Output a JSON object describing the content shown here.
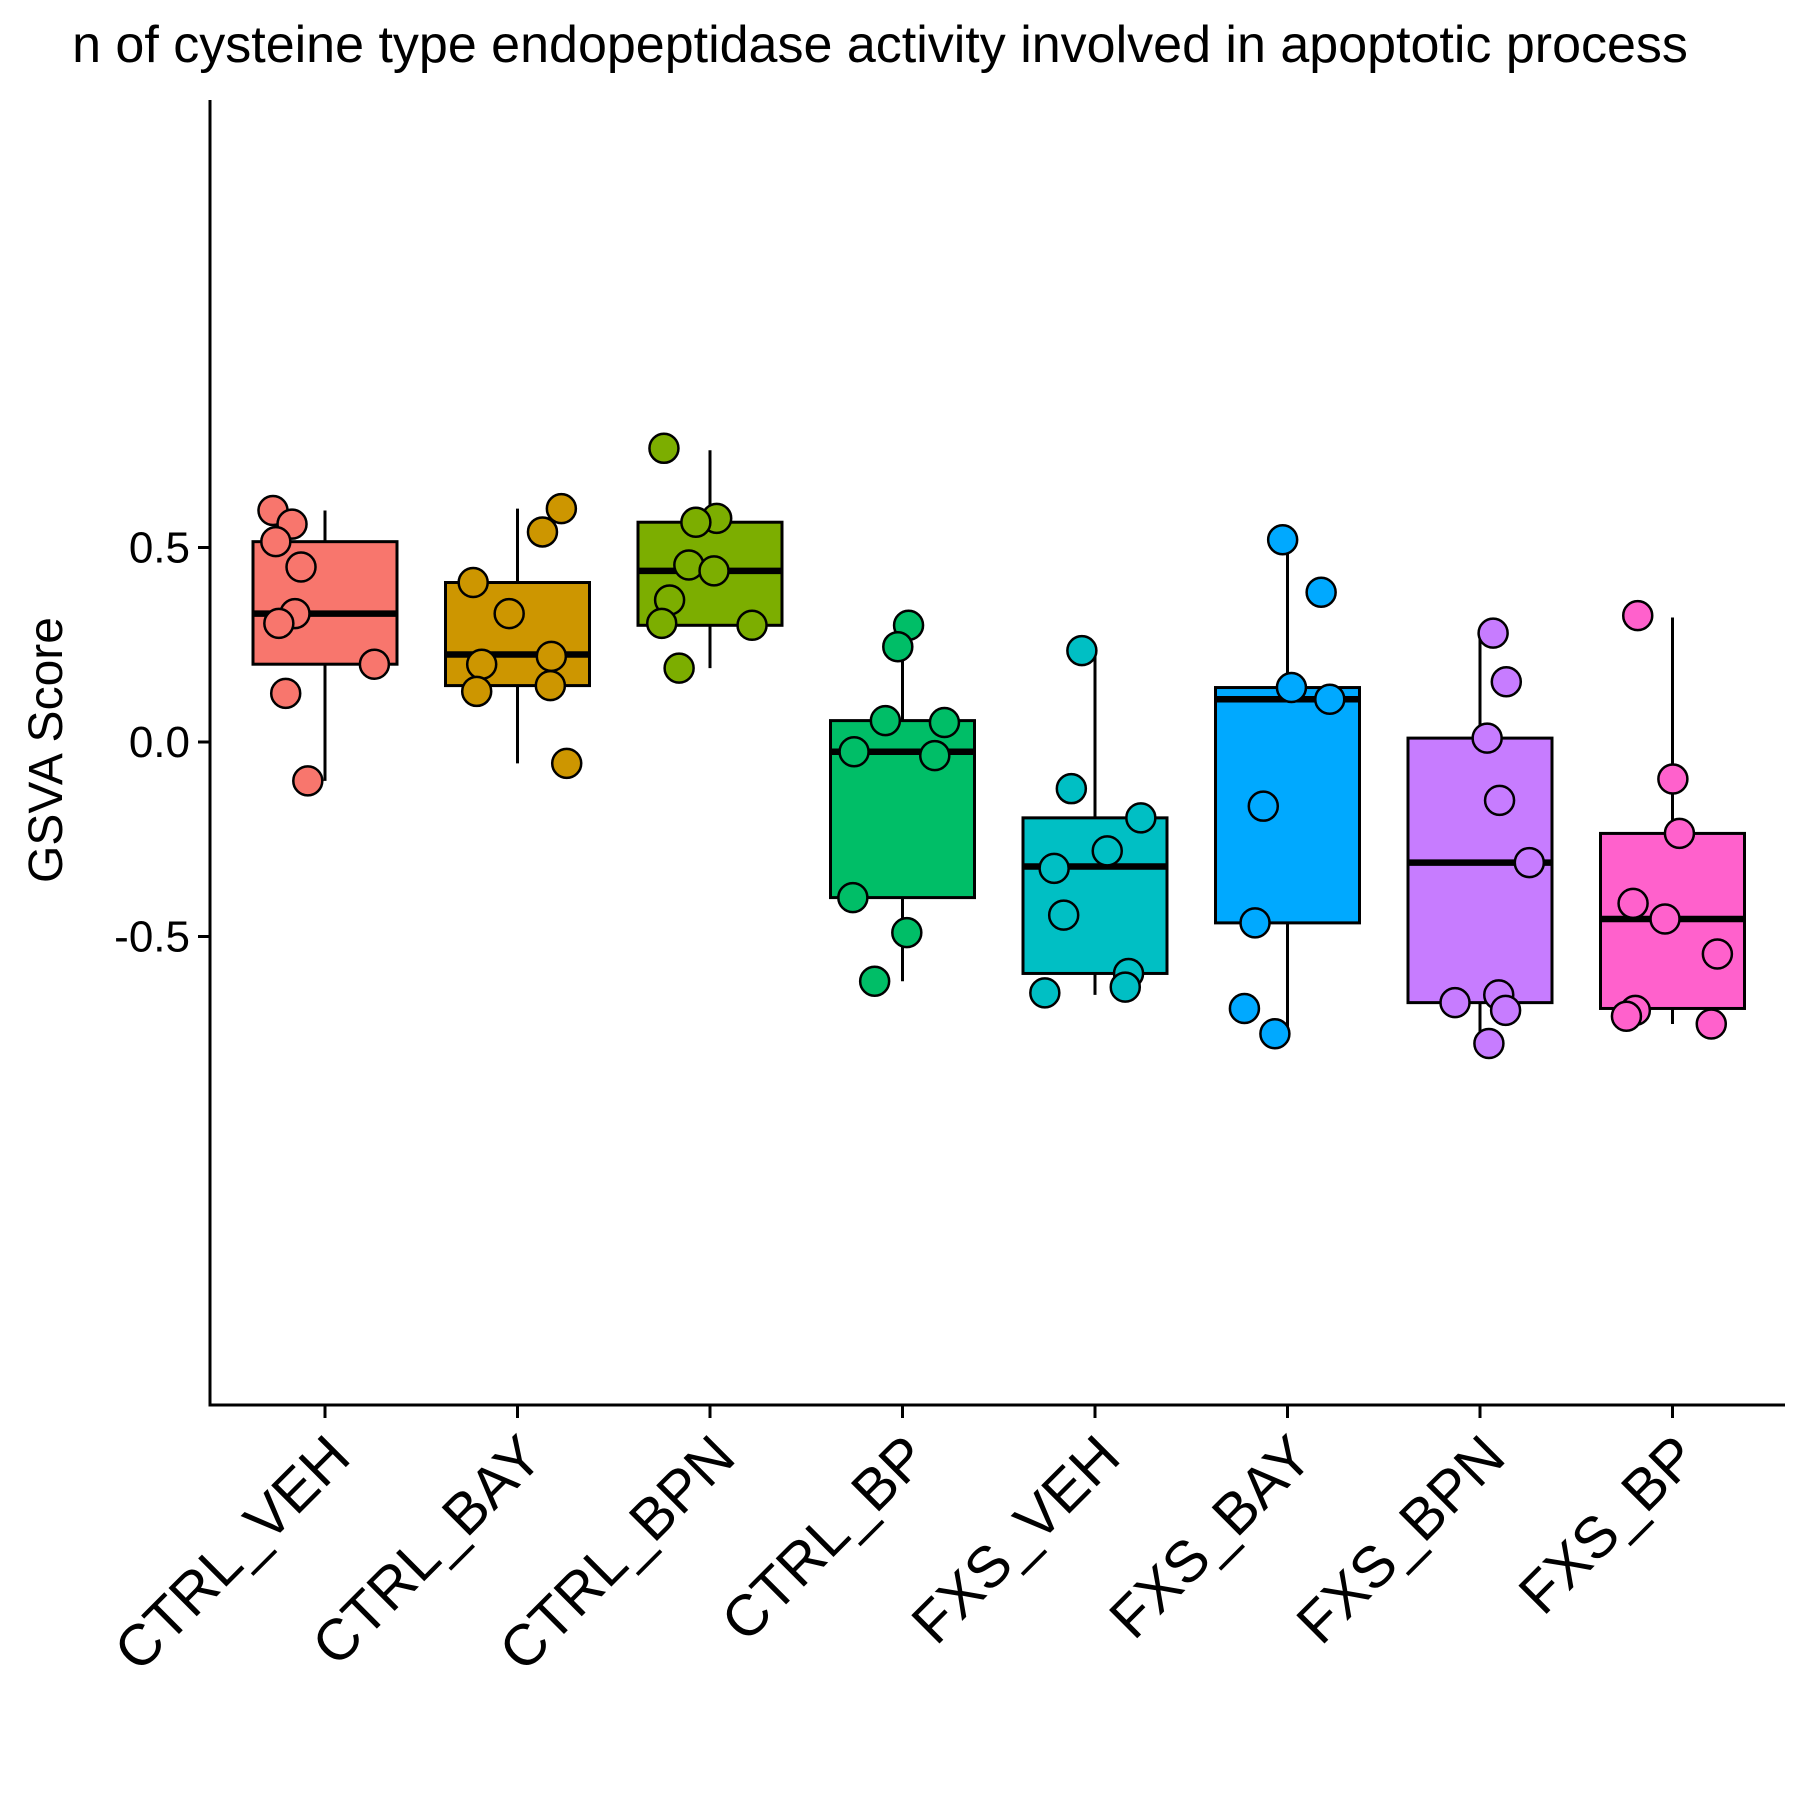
{
  "chart_data": {
    "type": "boxplot",
    "title": "n of cysteine type endopeptidase activity involved in apoptotic process",
    "xlabel": "",
    "ylabel": "GSVA Score",
    "ylim": [
      -0.85,
      0.82
    ],
    "yticks": [
      {
        "value": 0.5,
        "label": "0.5"
      },
      {
        "value": 0.0,
        "label": "0.0"
      },
      {
        "value": -0.5,
        "label": "-0.5"
      }
    ],
    "grid": false,
    "legend": "none",
    "categories": [
      "CTRL_VEH",
      "CTRL_BAY",
      "CTRL_BPN",
      "CTRL_BP",
      "FXS_VEH",
      "FXS_BAY",
      "FXS_BPN",
      "FXS_BP"
    ],
    "colors": [
      "#F8766D",
      "#CD9600",
      "#7CAE00",
      "#00BE67",
      "#00BFC4",
      "#00A9FF",
      "#C77CFF",
      "#FF61CC"
    ],
    "boxes": [
      {
        "whisker_low": -0.1,
        "q1": 0.2,
        "median": 0.33,
        "q3": 0.515,
        "whisker_high": 0.595
      },
      {
        "whisker_low": -0.055,
        "q1": 0.145,
        "median": 0.225,
        "q3": 0.41,
        "whisker_high": 0.6
      },
      {
        "whisker_low": 0.19,
        "q1": 0.3,
        "median": 0.44,
        "q3": 0.565,
        "whisker_high": 0.75
      },
      {
        "whisker_low": -0.615,
        "q1": -0.4,
        "median": -0.025,
        "q3": 0.055,
        "whisker_high": 0.3
      },
      {
        "whisker_low": -0.65,
        "q1": -0.595,
        "median": -0.32,
        "q3": -0.195,
        "whisker_high": 0.23
      },
      {
        "whisker_low": -0.75,
        "q1": -0.465,
        "median": 0.11,
        "q3": 0.14,
        "whisker_high": 0.52
      },
      {
        "whisker_low": -0.775,
        "q1": -0.67,
        "median": -0.31,
        "q3": 0.01,
        "whisker_high": 0.275
      },
      {
        "whisker_low": -0.725,
        "q1": -0.685,
        "median": -0.455,
        "q3": -0.235,
        "whisker_high": 0.32
      }
    ],
    "points": [
      [
        0.595,
        0.56,
        0.515,
        0.45,
        0.33,
        0.305,
        0.2,
        0.125,
        -0.1
      ],
      [
        0.6,
        0.54,
        0.41,
        0.33,
        0.22,
        0.2,
        0.145,
        0.13,
        -0.055
      ],
      [
        0.755,
        0.575,
        0.565,
        0.455,
        0.44,
        0.365,
        0.305,
        0.3,
        0.19
      ],
      [
        0.3,
        0.245,
        0.055,
        0.05,
        -0.025,
        -0.035,
        -0.4,
        -0.49,
        -0.615
      ],
      [
        0.235,
        -0.12,
        -0.195,
        -0.28,
        -0.325,
        -0.445,
        -0.595,
        -0.63,
        -0.645
      ],
      [
        0.52,
        0.385,
        0.14,
        0.11,
        -0.165,
        -0.465,
        -0.685,
        -0.75
      ],
      [
        0.28,
        0.155,
        0.01,
        -0.15,
        -0.31,
        -0.65,
        -0.67,
        -0.69,
        -0.775
      ],
      [
        0.325,
        -0.095,
        -0.235,
        -0.415,
        -0.455,
        -0.545,
        -0.69,
        -0.705,
        -0.725
      ]
    ]
  }
}
